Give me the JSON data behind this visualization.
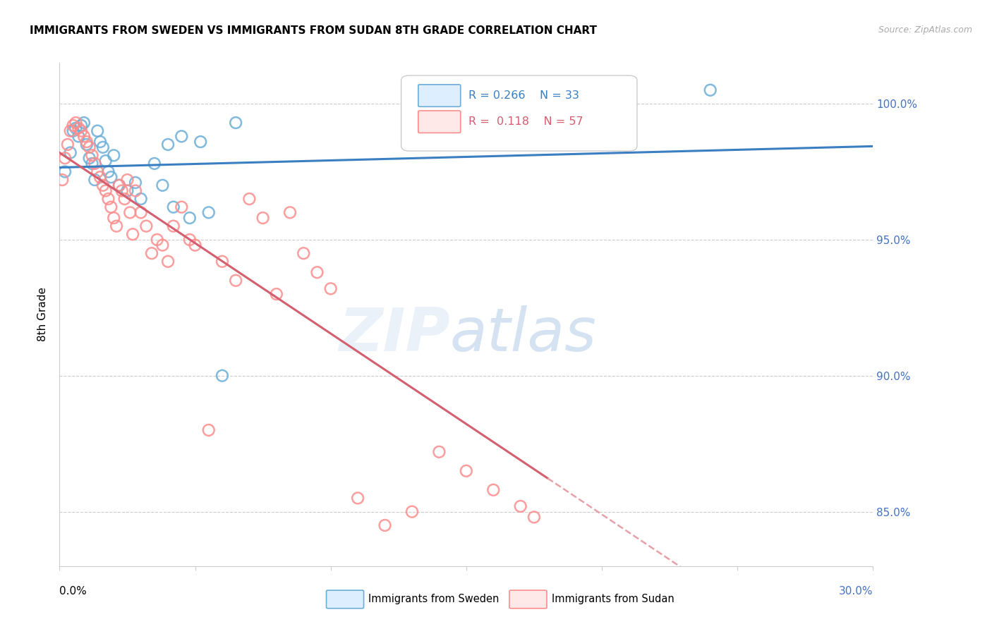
{
  "title": "IMMIGRANTS FROM SWEDEN VS IMMIGRANTS FROM SUDAN 8TH GRADE CORRELATION CHART",
  "source": "Source: ZipAtlas.com",
  "ylabel_label": "8th Grade",
  "xmin": 0.0,
  "xmax": 0.3,
  "ymin": 83.0,
  "ymax": 101.5,
  "legend_blue_r": "R = 0.266",
  "legend_blue_n": "N = 33",
  "legend_pink_r": "R =  0.118",
  "legend_pink_n": "N = 57",
  "sweden_color": "#6baed6",
  "sudan_color": "#fc8d8d",
  "trendline_blue_color": "#3a7fc1",
  "trendline_pink_color": "#d45f6e",
  "trendline_pink_dashed_color": "#e8a0a8",
  "sweden_x": [
    0.002,
    0.004,
    0.005,
    0.006,
    0.007,
    0.008,
    0.009,
    0.01,
    0.011,
    0.012,
    0.013,
    0.014,
    0.015,
    0.016,
    0.017,
    0.018,
    0.019,
    0.02,
    0.022,
    0.025,
    0.028,
    0.03,
    0.035,
    0.038,
    0.04,
    0.042,
    0.045,
    0.048,
    0.052,
    0.055,
    0.06,
    0.065,
    0.24
  ],
  "sweden_y": [
    97.5,
    98.2,
    99.0,
    99.1,
    98.8,
    99.2,
    99.3,
    98.5,
    98.0,
    97.8,
    97.2,
    99.0,
    98.6,
    98.4,
    97.9,
    97.5,
    97.3,
    98.1,
    97.0,
    96.8,
    97.1,
    96.5,
    97.8,
    97.0,
    98.5,
    96.2,
    98.8,
    95.8,
    98.6,
    96.0,
    90.0,
    99.3,
    100.5
  ],
  "sudan_x": [
    0.001,
    0.002,
    0.003,
    0.004,
    0.005,
    0.006,
    0.007,
    0.008,
    0.009,
    0.01,
    0.011,
    0.012,
    0.013,
    0.014,
    0.015,
    0.016,
    0.017,
    0.018,
    0.019,
    0.02,
    0.021,
    0.022,
    0.023,
    0.024,
    0.025,
    0.026,
    0.027,
    0.028,
    0.03,
    0.032,
    0.034,
    0.036,
    0.038,
    0.04,
    0.042,
    0.045,
    0.048,
    0.05,
    0.055,
    0.06,
    0.065,
    0.07,
    0.075,
    0.08,
    0.085,
    0.09,
    0.095,
    0.1,
    0.11,
    0.12,
    0.13,
    0.14,
    0.15,
    0.16,
    0.17,
    0.175,
    0.18
  ],
  "sudan_y": [
    97.2,
    98.0,
    98.5,
    99.0,
    99.2,
    99.3,
    99.1,
    99.0,
    98.8,
    98.6,
    98.4,
    98.1,
    97.8,
    97.5,
    97.3,
    97.0,
    96.8,
    96.5,
    96.2,
    95.8,
    95.5,
    97.0,
    96.8,
    96.5,
    97.2,
    96.0,
    95.2,
    96.8,
    96.0,
    95.5,
    94.5,
    95.0,
    94.8,
    94.2,
    95.5,
    96.2,
    95.0,
    94.8,
    88.0,
    94.2,
    93.5,
    96.5,
    95.8,
    93.0,
    96.0,
    94.5,
    93.8,
    93.2,
    85.5,
    84.5,
    85.0,
    87.2,
    86.5,
    85.8,
    85.2,
    84.8,
    100.2
  ]
}
